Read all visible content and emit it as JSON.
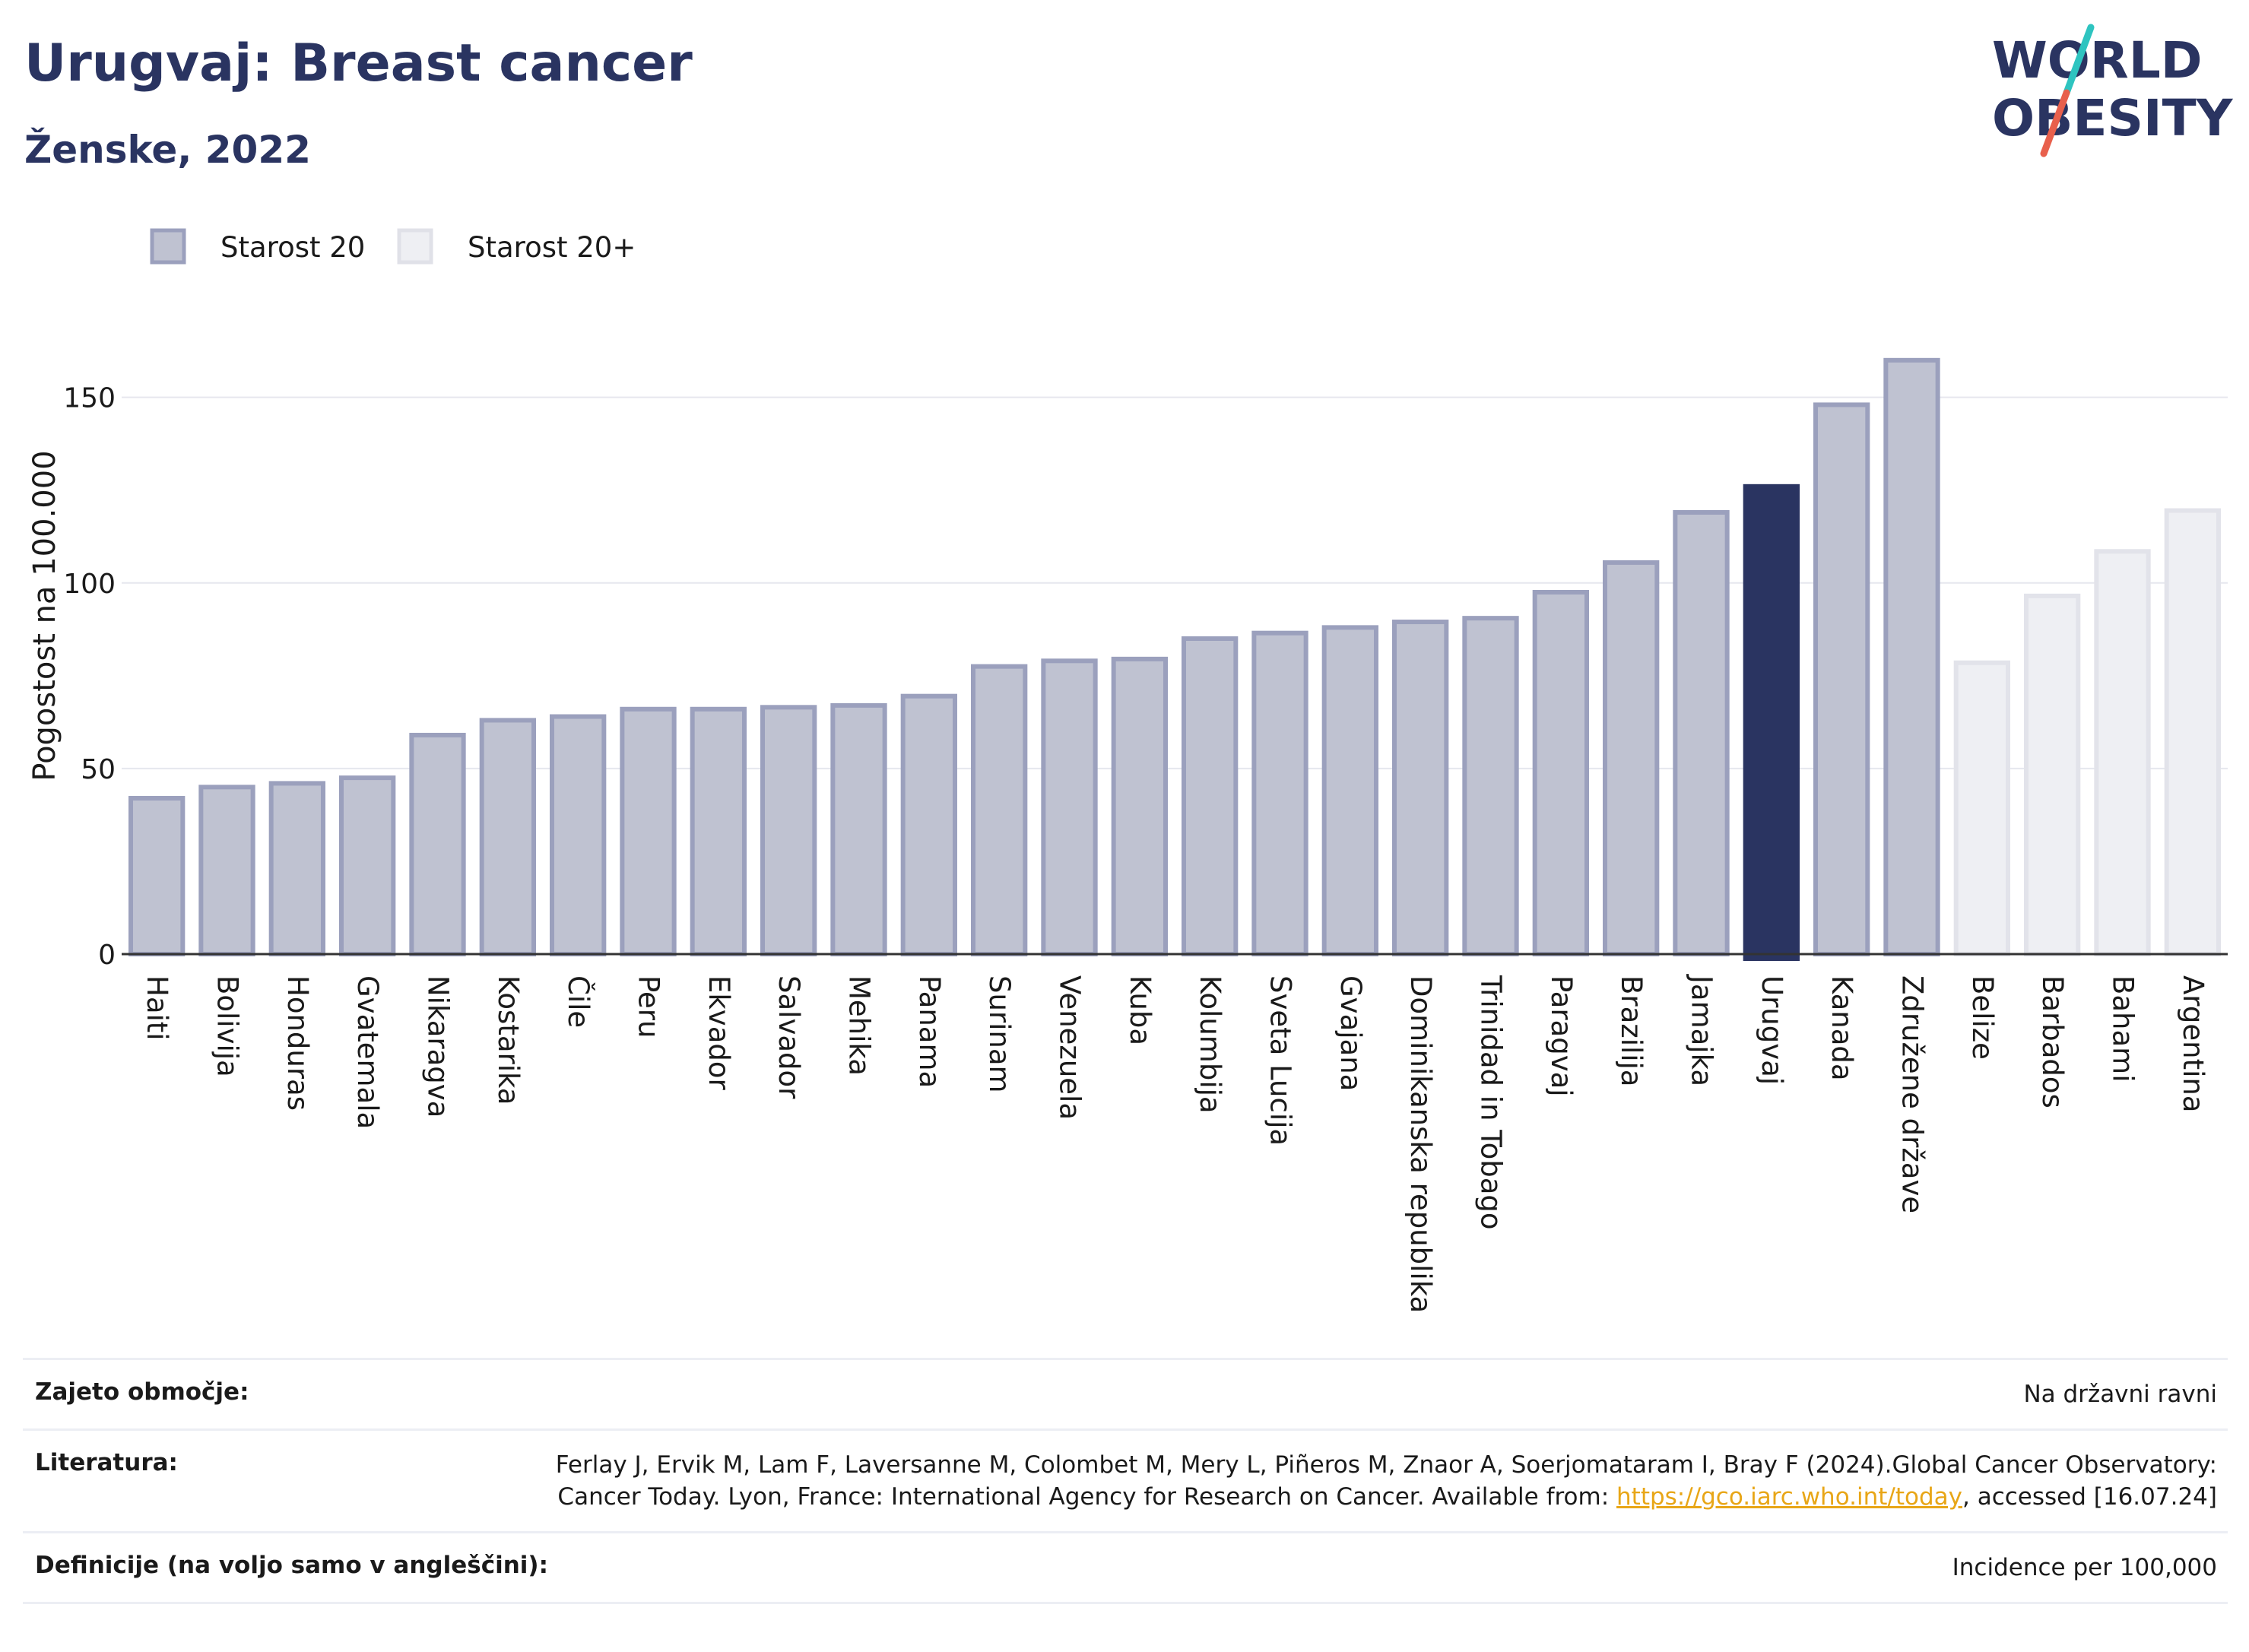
{
  "title": "Urugvaj: Breast cancer",
  "subtitle": "Ženske, 2022",
  "logo": {
    "line1": "WORLD",
    "line2": "OBESITY",
    "colors": {
      "text": "#2a3461",
      "slash_top": "#2ec4c0",
      "slash_bottom": "#e8604c"
    }
  },
  "legend": [
    {
      "label": "Starost 20",
      "color": "#bfc2d1",
      "border": "#9ba0bd"
    },
    {
      "label": "Starost 20+",
      "color": "#eeeff3",
      "border": "#e0e1e8"
    }
  ],
  "chart_data": {
    "type": "bar",
    "ylabel": "Pogostost na 100.000",
    "ylim": [
      0,
      170
    ],
    "yticks": [
      0,
      50,
      100,
      150
    ],
    "grid": true,
    "highlight": "Urugvaj",
    "colors": {
      "series1": "#bfc2d1",
      "series1_border": "#9ba0bd",
      "series2": "#eeeff3",
      "series2_border": "#e2e3ea",
      "highlight": "#2a3461"
    },
    "categories": [
      "Haiti",
      "Bolivija",
      "Honduras",
      "Gvatemala",
      "Nikaragva",
      "Kostarika",
      "Čile",
      "Peru",
      "Ekvador",
      "Salvador",
      "Mehika",
      "Panama",
      "Surinam",
      "Venezuela",
      "Kuba",
      "Kolumbija",
      "Sveta Lucija",
      "Gvajana",
      "Dominikanska republika",
      "Trinidad in Tobago",
      "Paragvaj",
      "Brazilija",
      "Jamajka",
      "Urugvaj",
      "Kanada",
      "Združene države",
      "Belize",
      "Barbados",
      "Bahami",
      "Argentina"
    ],
    "values": [
      42,
      45,
      46,
      47.5,
      59,
      63,
      64,
      66,
      66,
      66.5,
      67,
      69.5,
      77.5,
      79,
      79.5,
      85,
      86.5,
      88,
      89.5,
      90.5,
      97.5,
      105.5,
      119,
      126,
      148,
      160,
      78.5,
      96.5,
      108.5,
      119.5
    ],
    "series_index": [
      0,
      0,
      0,
      0,
      0,
      0,
      0,
      0,
      0,
      0,
      0,
      0,
      0,
      0,
      0,
      0,
      0,
      0,
      0,
      0,
      0,
      0,
      0,
      0,
      0,
      0,
      1,
      1,
      1,
      1
    ]
  },
  "meta": [
    {
      "key": "Zajeto območje:",
      "value": "Na državni ravni"
    },
    {
      "key": "Literatura:",
      "value_pre": "Ferlay J, Ervik M, Lam F, Laversanne M, Colombet M, Mery L, Piñeros M, Znaor A, Soerjomataram I, Bray F (2024).Global Cancer Observatory: Cancer Today. Lyon, France: International Agency for Research on Cancer. Available from: ",
      "link": "https://gco.iarc.who.int/today",
      "value_post": ", accessed [16.07.24]"
    },
    {
      "key": "Definicije (na voljo samo v angleščini):",
      "value": "Incidence per 100,000"
    }
  ]
}
